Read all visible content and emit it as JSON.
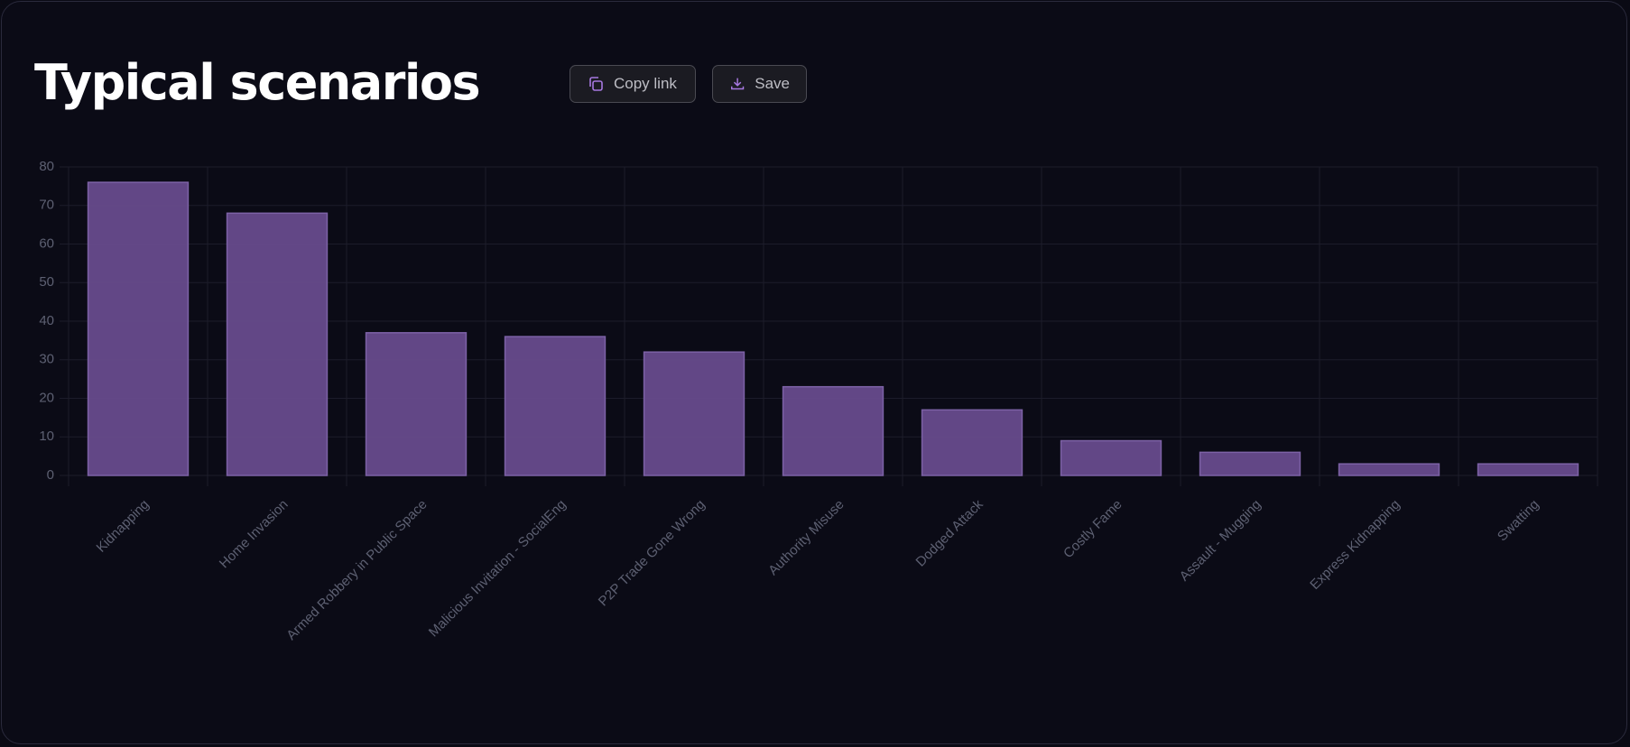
{
  "header": {
    "title": "Typical scenarios",
    "buttons": [
      "Copy link",
      "Save"
    ]
  },
  "chart_data": {
    "type": "bar",
    "categories": [
      "Kidnapping",
      "Home Invasion",
      "Armed Robbery in Public Space",
      "Malicious Invitation - SocialEng",
      "P2P Trade Gone Wrong",
      "Authority Misuse",
      "Dodged Attack",
      "Costly Fame",
      "Assault - Mugging",
      "Express Kidnapping",
      "Swatting"
    ],
    "values": [
      76,
      68,
      37,
      36,
      32,
      23,
      17,
      9,
      6,
      3,
      3
    ],
    "color": "#674b8c",
    "ylim": [
      0,
      80
    ],
    "yticks": [
      0,
      10,
      20,
      30,
      40,
      50,
      60,
      70,
      80
    ],
    "grid": true
  }
}
